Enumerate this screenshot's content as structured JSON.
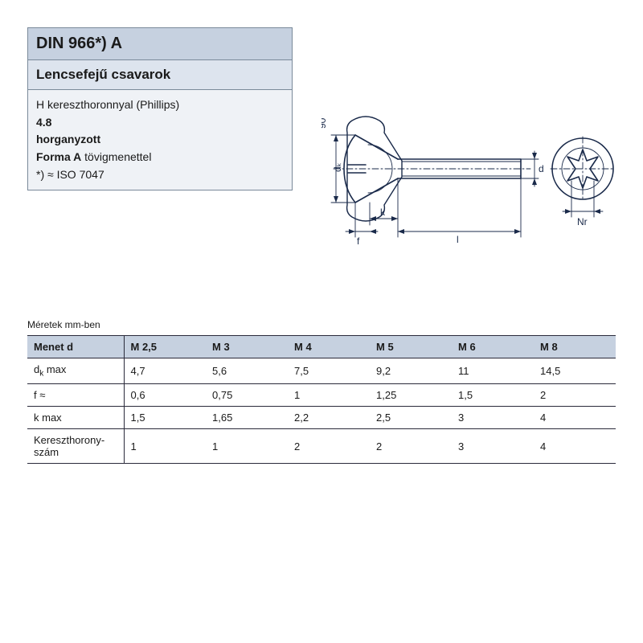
{
  "header": {
    "title": "DIN 966*) A",
    "subtitle": "Lencsefejű csavarok",
    "line1": "H kereszthoronnyal (Phillips)",
    "strength": "4.8",
    "coating": "horganyzott",
    "form_label": "Forma A",
    "form_rest": " tövigmenettel",
    "iso": "*) ≈ ISO 7047"
  },
  "diagram": {
    "stroke": "#1a2a4a",
    "angle_label": "90°",
    "dk_label": "dₖ",
    "k_label": "k",
    "f_label": "f",
    "l_label": "l",
    "d_label": "d",
    "nr_label": "Nr"
  },
  "table": {
    "units_label": "Méretek mm-ben",
    "header_bg": "#c6d1e0",
    "border_color": "#2a2a3a",
    "fontsize": 13,
    "columns": [
      "Menet d",
      "M 2,5",
      "M 3",
      "M 4",
      "M 5",
      "M 6",
      "M 8"
    ],
    "rows": [
      {
        "label": "d",
        "sub": "k",
        "suffix": " max",
        "values": [
          "4,7",
          "5,6",
          "7,5",
          "9,2",
          "11",
          "14,5"
        ]
      },
      {
        "label": "f ≈",
        "values": [
          "0,6",
          "0,75",
          "1",
          "1,25",
          "1,5",
          "2"
        ]
      },
      {
        "label": "k max",
        "values": [
          "1,5",
          "1,65",
          "2,2",
          "2,5",
          "3",
          "4"
        ]
      },
      {
        "label": "Kereszthorony-\nszám",
        "values": [
          "1",
          "1",
          "2",
          "2",
          "3",
          "4"
        ]
      }
    ]
  },
  "colors": {
    "header_title_bg": "#c6d1e0",
    "header_sub_bg": "#dde4ee",
    "header_body_bg": "#eff2f6",
    "header_border": "#7a8a9a",
    "text": "#1a1a1a"
  }
}
